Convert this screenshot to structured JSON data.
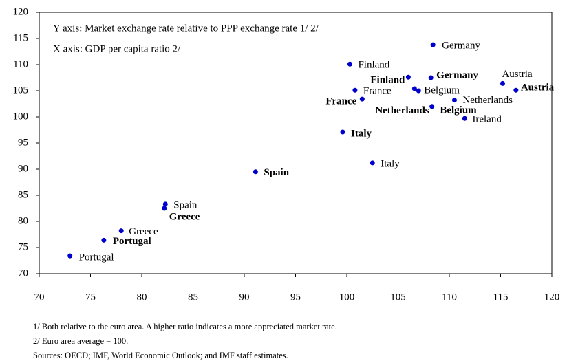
{
  "chart_data": {
    "type": "scatter",
    "annotations": [
      "Y axis: Market exchange rate relative to PPP exchange rate 1/ 2/",
      "X axis: GDP per capita ratio 2/"
    ],
    "notes": [
      "1/ Both relative to the euro area.  A higher ratio indicates a more appreciated market rate.",
      "2/ Euro area average = 100.",
      "Sources: OECD; IMF, World Economic Outlook; and IMF staff estimates."
    ],
    "xlim": [
      70,
      120
    ],
    "xticks": [
      70,
      75,
      80,
      85,
      90,
      95,
      100,
      105,
      110,
      115,
      120
    ],
    "ylim": [
      70,
      120
    ],
    "yticks": [
      70,
      75,
      80,
      85,
      90,
      95,
      100,
      105,
      110,
      115,
      120
    ],
    "color": "#0000cc",
    "points": [
      {
        "label": "Germany",
        "bold": false,
        "x": 108.4,
        "y": 113.8
      },
      {
        "label": "Finland",
        "bold": false,
        "x": 100.3,
        "y": 110.1
      },
      {
        "label": "Finland",
        "bold": true,
        "x": 106.0,
        "y": 107.6
      },
      {
        "label": "Germany",
        "bold": true,
        "x": 108.2,
        "y": 107.5
      },
      {
        "label": "Austria",
        "bold": false,
        "x": 115.2,
        "y": 106.4
      },
      {
        "label": "Austria",
        "bold": true,
        "x": 116.5,
        "y": 105.1
      },
      {
        "label": "France",
        "bold": false,
        "x": 100.8,
        "y": 105.1
      },
      {
        "label": "Belgium",
        "bold": false,
        "x": 107.0,
        "y": 105.0
      },
      {
        "label": "Belgium",
        "bold": true,
        "x": 106.6,
        "y": 105.4
      },
      {
        "label": "France",
        "bold": true,
        "x": 101.5,
        "y": 103.4
      },
      {
        "label": "Netherlands",
        "bold": false,
        "x": 110.5,
        "y": 103.2
      },
      {
        "label": "Ireland",
        "bold": false,
        "x": 111.5,
        "y": 99.7
      },
      {
        "label": "Italy",
        "bold": true,
        "x": 99.6,
        "y": 97.1
      },
      {
        "label": "Italy",
        "bold": false,
        "x": 102.5,
        "y": 91.2
      },
      {
        "label": "Spain",
        "bold": true,
        "x": 91.1,
        "y": 89.5
      },
      {
        "label": "Spain",
        "bold": false,
        "x": 82.3,
        "y": 83.3
      },
      {
        "label": "Greece",
        "bold": true,
        "x": 82.2,
        "y": 82.5
      },
      {
        "label": "Greece",
        "bold": false,
        "x": 78.0,
        "y": 78.2
      },
      {
        "label": "Portugal",
        "bold": true,
        "x": 76.3,
        "y": 76.4
      },
      {
        "label": "Portugal",
        "bold": false,
        "x": 73.0,
        "y": 73.4
      },
      {
        "label": "Netherlands",
        "bold": true,
        "x": 108.3,
        "y": 102.0
      }
    ]
  }
}
